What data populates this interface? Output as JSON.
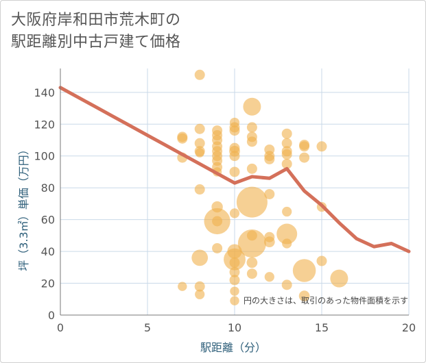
{
  "page": {
    "title_line1": "大阪府岸和田市荒木町の",
    "title_line2": "駅距離別中古戸建て価格"
  },
  "chart_data": {
    "type": "scatter",
    "title": "大阪府岸和田市荒木町の駅距離別中古戸建て価格",
    "xlabel": "駅距離（分）",
    "ylabel": "坪（3.3㎡）単価（万円）",
    "xlim": [
      0,
      20
    ],
    "ylim": [
      0,
      155
    ],
    "xticks": [
      0,
      5,
      10,
      15,
      20
    ],
    "yticks": [
      0,
      20,
      40,
      60,
      80,
      100,
      120,
      140
    ],
    "grid": true,
    "annotation": "円の大きさは、取引のあった物件面積を示す",
    "colors": {
      "bubble": "#f0b04d",
      "line": "#d4705a",
      "grid": "#c9d9e8"
    },
    "bubbles": [
      {
        "x": 7,
        "y": 112,
        "s": 1
      },
      {
        "x": 7,
        "y": 111,
        "s": 1
      },
      {
        "x": 7,
        "y": 99,
        "s": 1
      },
      {
        "x": 7,
        "y": 18,
        "s": 0.8
      },
      {
        "x": 8,
        "y": 151,
        "s": 1
      },
      {
        "x": 8,
        "y": 117,
        "s": 1
      },
      {
        "x": 8,
        "y": 108,
        "s": 1
      },
      {
        "x": 8,
        "y": 103,
        "s": 1
      },
      {
        "x": 8,
        "y": 102,
        "s": 0.8
      },
      {
        "x": 8,
        "y": 79,
        "s": 1
      },
      {
        "x": 8,
        "y": 36,
        "s": 2.5
      },
      {
        "x": 8,
        "y": 18,
        "s": 1
      },
      {
        "x": 8,
        "y": 13,
        "s": 0.9
      },
      {
        "x": 9,
        "y": 116,
        "s": 1
      },
      {
        "x": 9,
        "y": 113,
        "s": 1
      },
      {
        "x": 9,
        "y": 110,
        "s": 1
      },
      {
        "x": 9,
        "y": 106,
        "s": 1
      },
      {
        "x": 9,
        "y": 103,
        "s": 1
      },
      {
        "x": 9,
        "y": 100,
        "s": 1
      },
      {
        "x": 9,
        "y": 97,
        "s": 1
      },
      {
        "x": 9,
        "y": 93,
        "s": 1
      },
      {
        "x": 9,
        "y": 90,
        "s": 0.8
      },
      {
        "x": 9,
        "y": 68,
        "s": 1.2
      },
      {
        "x": 9,
        "y": 59,
        "s": 6.5
      },
      {
        "x": 9,
        "y": 59,
        "s": 1
      },
      {
        "x": 9,
        "y": 42,
        "s": 1
      },
      {
        "x": 10,
        "y": 121,
        "s": 0.9
      },
      {
        "x": 10,
        "y": 118,
        "s": 1
      },
      {
        "x": 10,
        "y": 116,
        "s": 1
      },
      {
        "x": 10,
        "y": 105,
        "s": 1
      },
      {
        "x": 10,
        "y": 103,
        "s": 1.1
      },
      {
        "x": 10,
        "y": 100,
        "s": 1
      },
      {
        "x": 10,
        "y": 90,
        "s": 1
      },
      {
        "x": 10,
        "y": 64,
        "s": 0.9
      },
      {
        "x": 10,
        "y": 40,
        "s": 2
      },
      {
        "x": 10,
        "y": 35,
        "s": 4.5
      },
      {
        "x": 10,
        "y": 33,
        "s": 1
      },
      {
        "x": 10,
        "y": 27,
        "s": 1
      },
      {
        "x": 10,
        "y": 22,
        "s": 1
      },
      {
        "x": 10,
        "y": 15,
        "s": 0.8
      },
      {
        "x": 10,
        "y": 9,
        "s": 0.8
      },
      {
        "x": 11,
        "y": 131,
        "s": 3
      },
      {
        "x": 11,
        "y": 118,
        "s": 1
      },
      {
        "x": 11,
        "y": 112,
        "s": 1
      },
      {
        "x": 11,
        "y": 109,
        "s": 1
      },
      {
        "x": 11,
        "y": 92,
        "s": 1
      },
      {
        "x": 11,
        "y": 71,
        "s": 9
      },
      {
        "x": 11,
        "y": 50,
        "s": 1
      },
      {
        "x": 11,
        "y": 45,
        "s": 7.5
      },
      {
        "x": 11,
        "y": 33,
        "s": 1.1
      },
      {
        "x": 11,
        "y": 26,
        "s": 1
      },
      {
        "x": 12,
        "y": 104,
        "s": 1
      },
      {
        "x": 12,
        "y": 100,
        "s": 1
      },
      {
        "x": 12,
        "y": 98,
        "s": 1
      },
      {
        "x": 12,
        "y": 76,
        "s": 1
      },
      {
        "x": 12,
        "y": 49,
        "s": 1
      },
      {
        "x": 12,
        "y": 46,
        "s": 1.1
      },
      {
        "x": 12,
        "y": 24,
        "s": 0.9
      },
      {
        "x": 13,
        "y": 114,
        "s": 1
      },
      {
        "x": 13,
        "y": 108,
        "s": 1
      },
      {
        "x": 13,
        "y": 103,
        "s": 1
      },
      {
        "x": 13,
        "y": 101,
        "s": 1
      },
      {
        "x": 13,
        "y": 95,
        "s": 1
      },
      {
        "x": 13,
        "y": 65,
        "s": 0.9
      },
      {
        "x": 13,
        "y": 51,
        "s": 4
      },
      {
        "x": 13,
        "y": 45,
        "s": 0.9
      },
      {
        "x": 13,
        "y": 19,
        "s": 1
      },
      {
        "x": 14,
        "y": 107,
        "s": 1
      },
      {
        "x": 14,
        "y": 106,
        "s": 1
      },
      {
        "x": 14,
        "y": 99,
        "s": 1
      },
      {
        "x": 14,
        "y": 28,
        "s": 5
      },
      {
        "x": 14,
        "y": 12,
        "s": 1.1
      },
      {
        "x": 15,
        "y": 106,
        "s": 1
      },
      {
        "x": 15,
        "y": 68,
        "s": 0.9
      },
      {
        "x": 15,
        "y": 34,
        "s": 1
      },
      {
        "x": 16,
        "y": 23,
        "s": 3
      }
    ],
    "series": [
      {
        "name": "trend",
        "x": [
          0,
          1,
          2,
          3,
          4,
          5,
          6,
          7,
          8,
          9,
          10,
          11,
          12,
          13,
          14,
          15,
          16,
          17,
          18,
          19,
          20
        ],
        "values": [
          143,
          137,
          131,
          125,
          119,
          113,
          107,
          101,
          95,
          89,
          83,
          87,
          86,
          92,
          78,
          69,
          58,
          48,
          43,
          45,
          40
        ]
      }
    ]
  }
}
